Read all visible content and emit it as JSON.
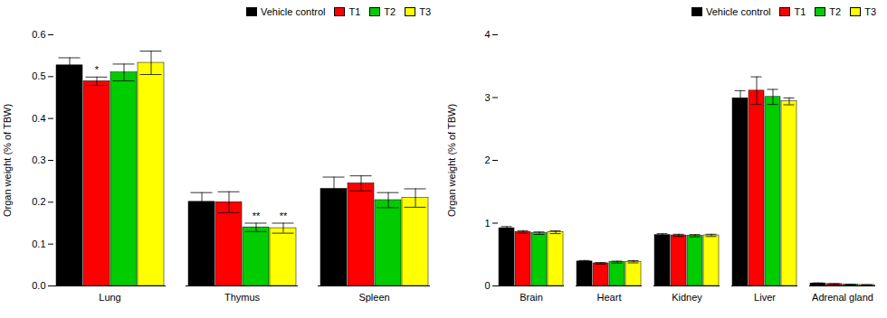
{
  "chart_data": [
    {
      "type": "bar",
      "categories": [
        "Lung",
        "Thymus",
        "Spleen"
      ],
      "series": [
        {
          "name": "Vehicle control",
          "color": "#000000",
          "values": [
            0.527,
            0.201,
            0.232
          ],
          "errors": [
            0.018,
            0.022,
            0.028
          ]
        },
        {
          "name": "T1",
          "color": "#ff0000",
          "values": [
            0.489,
            0.2,
            0.245
          ],
          "errors": [
            0.01,
            0.025,
            0.018
          ]
        },
        {
          "name": "T2",
          "color": "#00cc00",
          "values": [
            0.51,
            0.14,
            0.205
          ],
          "errors": [
            0.02,
            0.01,
            0.018
          ]
        },
        {
          "name": "T3",
          "color": "#ffff00",
          "values": [
            0.533,
            0.138,
            0.21
          ],
          "errors": [
            0.028,
            0.012,
            0.022
          ]
        }
      ],
      "annotations": [
        {
          "category": "Lung",
          "series": "T1",
          "text": "*"
        },
        {
          "category": "Thymus",
          "series": "T2",
          "text": "**"
        },
        {
          "category": "Thymus",
          "series": "T3",
          "text": "**"
        }
      ],
      "ylabel": "Organ weight (% of TBW)",
      "ylim": [
        0.0,
        0.6
      ],
      "yticks": [
        {
          "value": 0.0,
          "label": "0.0"
        },
        0.1,
        0.2,
        0.3,
        0.4,
        0.5,
        0.6
      ],
      "legend": "upper right",
      "grid": false
    },
    {
      "type": "bar",
      "categories": [
        "Brain",
        "Heart",
        "Kidney",
        "Liver",
        "Adrenal gland"
      ],
      "series": [
        {
          "name": "Vehicle control",
          "color": "#000000",
          "values": [
            0.92,
            0.39,
            0.81,
            2.99,
            0.04
          ],
          "errors": [
            0.025,
            0.015,
            0.022,
            0.12,
            0.008
          ]
        },
        {
          "name": "T1",
          "color": "#ff0000",
          "values": [
            0.86,
            0.36,
            0.805,
            3.11,
            0.03
          ],
          "errors": [
            0.02,
            0.012,
            0.018,
            0.22,
            0.005
          ]
        },
        {
          "name": "T2",
          "color": "#00cc00",
          "values": [
            0.84,
            0.38,
            0.8,
            3.01,
            0.02
          ],
          "errors": [
            0.02,
            0.015,
            0.018,
            0.12,
            0.005
          ]
        },
        {
          "name": "T3",
          "color": "#ffff00",
          "values": [
            0.855,
            0.385,
            0.805,
            2.94,
            0.015
          ],
          "errors": [
            0.022,
            0.018,
            0.018,
            0.055,
            0.004
          ]
        }
      ],
      "ylabel": "Organ weight (% of TBW)",
      "ylim": [
        0,
        4
      ],
      "yticks": [
        0,
        1,
        2,
        3,
        4
      ],
      "legend": "upper right",
      "grid": false
    }
  ]
}
